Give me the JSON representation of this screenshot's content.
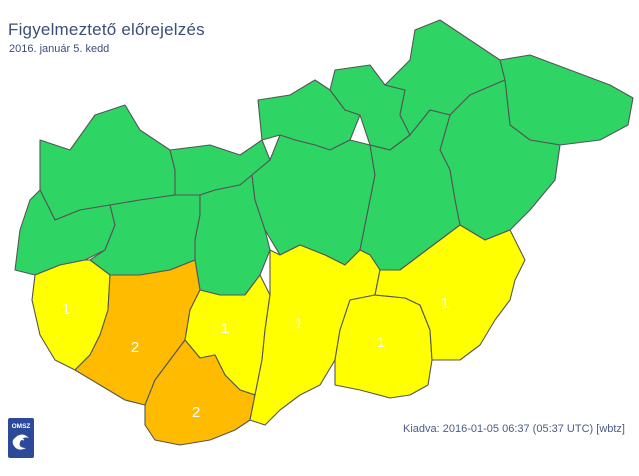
{
  "header": {
    "title": "Figyelmeztető előrejelzés",
    "date": "2016. január 5. kedd"
  },
  "legend_colors": {
    "level_0": "#2ed565",
    "level_1": "#ffff00",
    "level_2": "#ffbb00"
  },
  "regions": [
    {
      "id": "nw-1",
      "level": 0,
      "label": ""
    },
    {
      "id": "nw-2",
      "level": 0,
      "label": ""
    },
    {
      "id": "n-1",
      "level": 0,
      "label": ""
    },
    {
      "id": "n-2",
      "level": 0,
      "label": ""
    },
    {
      "id": "n-3",
      "level": 0,
      "label": ""
    },
    {
      "id": "ne-1",
      "level": 0,
      "label": ""
    },
    {
      "id": "ne-2",
      "level": 0,
      "label": ""
    },
    {
      "id": "ne-3",
      "level": 0,
      "label": ""
    },
    {
      "id": "w-1",
      "level": 0,
      "label": ""
    },
    {
      "id": "w-2",
      "level": 0,
      "label": ""
    },
    {
      "id": "c-1",
      "level": 0,
      "label": ""
    },
    {
      "id": "e-1",
      "level": 0,
      "label": ""
    },
    {
      "id": "vas-zala",
      "level": 1,
      "label": "1"
    },
    {
      "id": "somogy",
      "level": 2,
      "label": "2"
    },
    {
      "id": "baranya",
      "level": 2,
      "label": "2"
    },
    {
      "id": "tolna",
      "level": 1,
      "label": "1"
    },
    {
      "id": "bacs",
      "level": 1,
      "label": "1"
    },
    {
      "id": "csongrad",
      "level": 1,
      "label": "1"
    },
    {
      "id": "bekes",
      "level": 1,
      "label": "1"
    }
  ],
  "logo": {
    "text": "OMSZ",
    "color": "#2d4a9a"
  },
  "footer": {
    "issued": "Kiadva: 2016-01-05 06:37 (05:37 UTC) [wbtz]"
  }
}
